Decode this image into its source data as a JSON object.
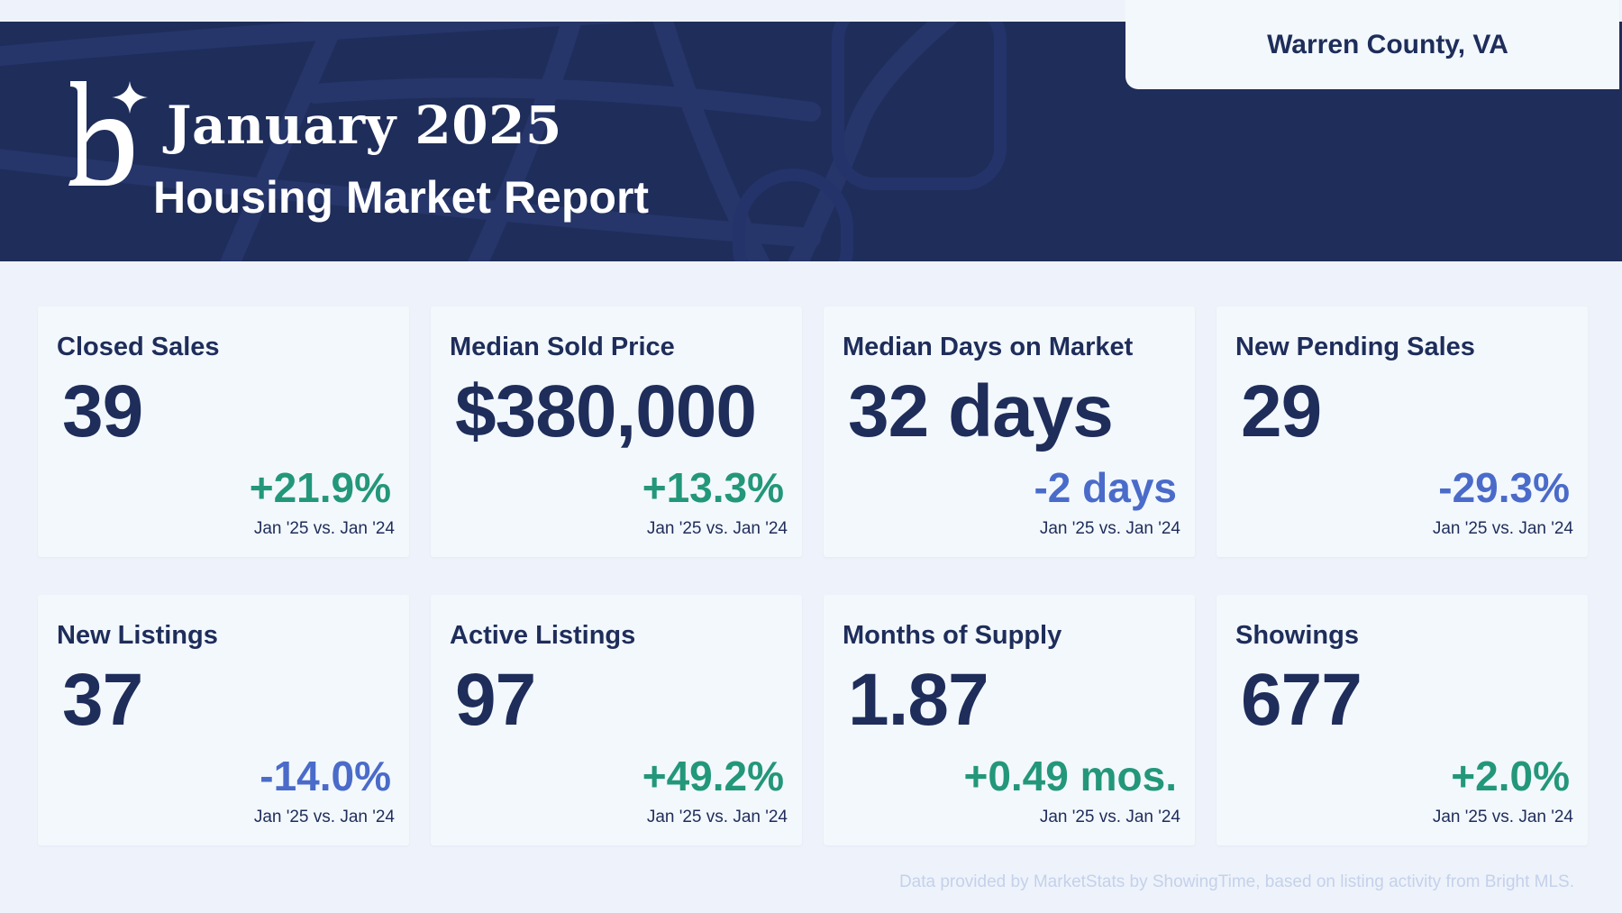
{
  "header": {
    "title": "January 2025",
    "subtitle": "Housing Market Report",
    "location": "Warren County, VA",
    "background_color": "#1e2d5a",
    "logo_icon": "brand-b-sparkle-logo"
  },
  "cards": [
    {
      "label": "Closed Sales",
      "value": "39",
      "change": "+21.9%",
      "trend": "positive",
      "comparison": "Jan '25 vs. Jan '24"
    },
    {
      "label": "Median Sold Price",
      "value": "$380,000",
      "change": "+13.3%",
      "trend": "positive",
      "comparison": "Jan '25 vs. Jan '24"
    },
    {
      "label": "Median Days on Market",
      "value": "32 days",
      "change": "-2 days",
      "trend": "negative",
      "comparison": "Jan '25 vs. Jan '24"
    },
    {
      "label": "New Pending Sales",
      "value": "29",
      "change": "-29.3%",
      "trend": "negative",
      "comparison": "Jan '25 vs. Jan '24"
    },
    {
      "label": "New Listings",
      "value": "37",
      "change": "-14.0%",
      "trend": "negative",
      "comparison": "Jan '25 vs. Jan '24"
    },
    {
      "label": "Active Listings",
      "value": "97",
      "change": "+49.2%",
      "trend": "positive",
      "comparison": "Jan '25 vs. Jan '24"
    },
    {
      "label": "Months of Supply",
      "value": "1.87",
      "change": "+0.49 mos.",
      "trend": "positive",
      "comparison": "Jan '25 vs. Jan '24"
    },
    {
      "label": "Showings",
      "value": "677",
      "change": "+2.0%",
      "trend": "positive",
      "comparison": "Jan '25 vs. Jan '24"
    }
  ],
  "colors": {
    "positive": "#23977a",
    "negative": "#4a6bc9",
    "text_dark": "#1e2d5a"
  },
  "footer": {
    "source": "Data provided by MarketStats by ShowingTime, based on listing activity from Bright MLS."
  }
}
